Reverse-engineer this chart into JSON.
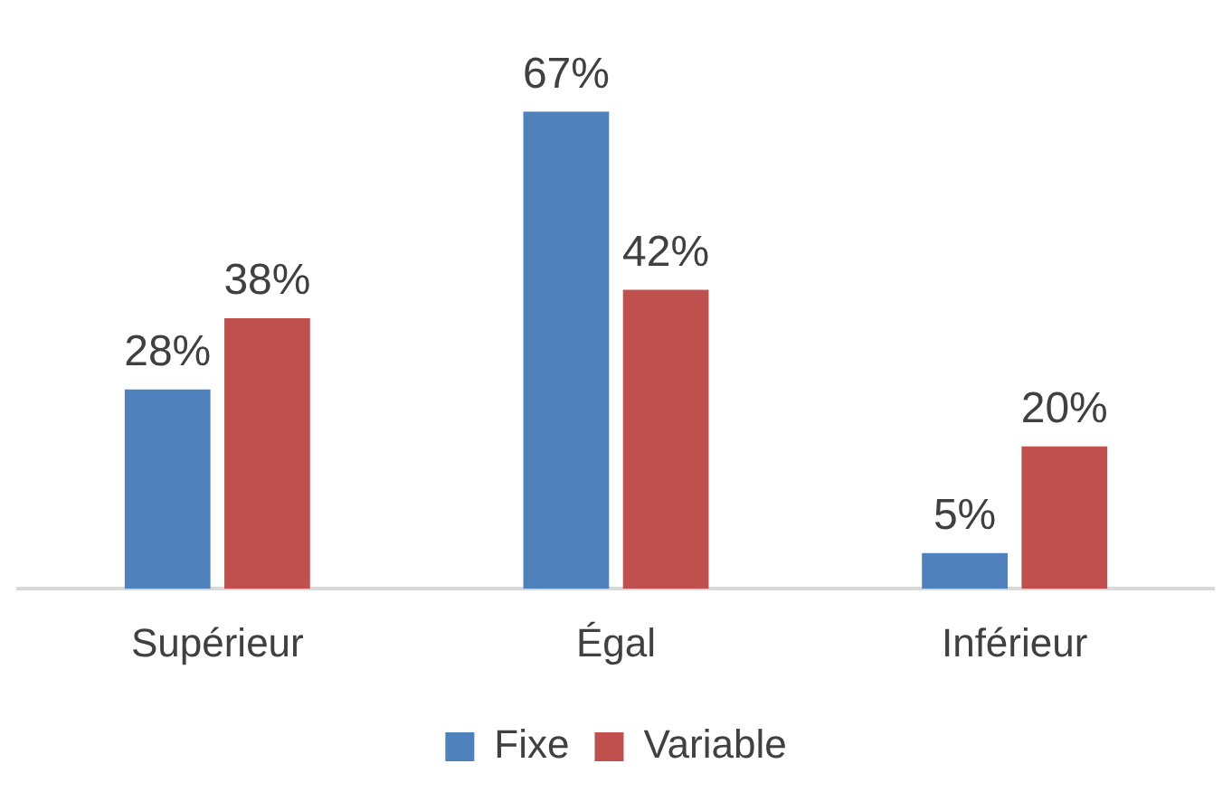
{
  "chart_data": {
    "type": "bar",
    "categories": [
      "Supérieur",
      "Égal",
      "Inférieur"
    ],
    "series": [
      {
        "name": "Fixe",
        "color": "#4f81bd",
        "values": [
          28,
          67,
          5
        ],
        "value_labels": [
          "28%",
          "67%",
          "5%"
        ]
      },
      {
        "name": "Variable",
        "color": "#c0504d",
        "values": [
          38,
          42,
          20
        ],
        "value_labels": [
          "38%",
          "42%",
          "20%"
        ]
      }
    ],
    "grid": false,
    "legend": "bottom"
  }
}
